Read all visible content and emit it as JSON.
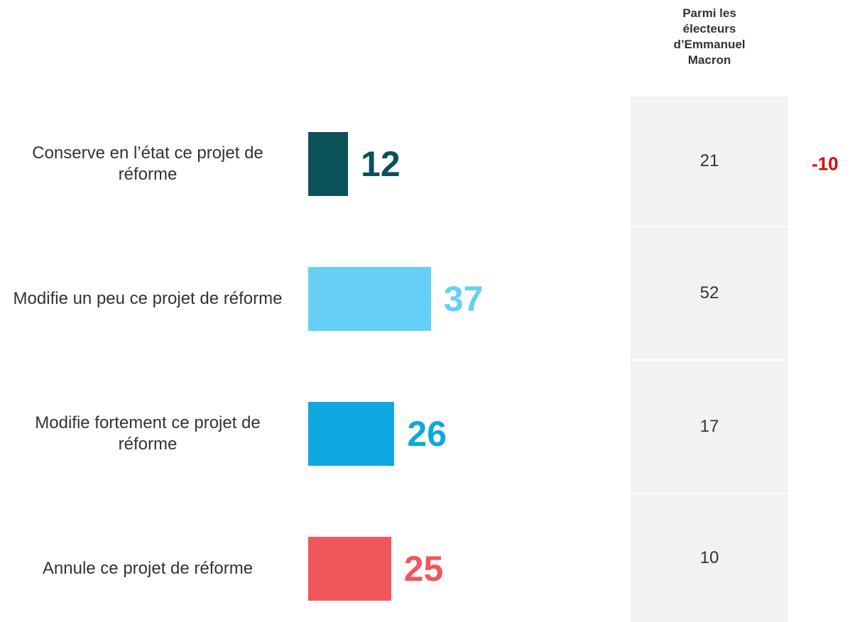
{
  "chart_data": {
    "type": "bar",
    "categories": [
      "Conserve en l’état ce projet de réforme",
      "Modifie un peu ce projet de réforme",
      "Modifie fortement ce projet de réforme",
      "Annule ce projet de réforme"
    ],
    "values": [
      12,
      37,
      26,
      25
    ],
    "colors": [
      "#0b5158",
      "#66cff5",
      "#0ea8e0",
      "#f0565b"
    ],
    "table": {
      "header": "Parmi les électeurs d’Emmanuel Macron",
      "values": [
        21,
        52,
        17,
        10
      ]
    },
    "annotation": "-10"
  }
}
